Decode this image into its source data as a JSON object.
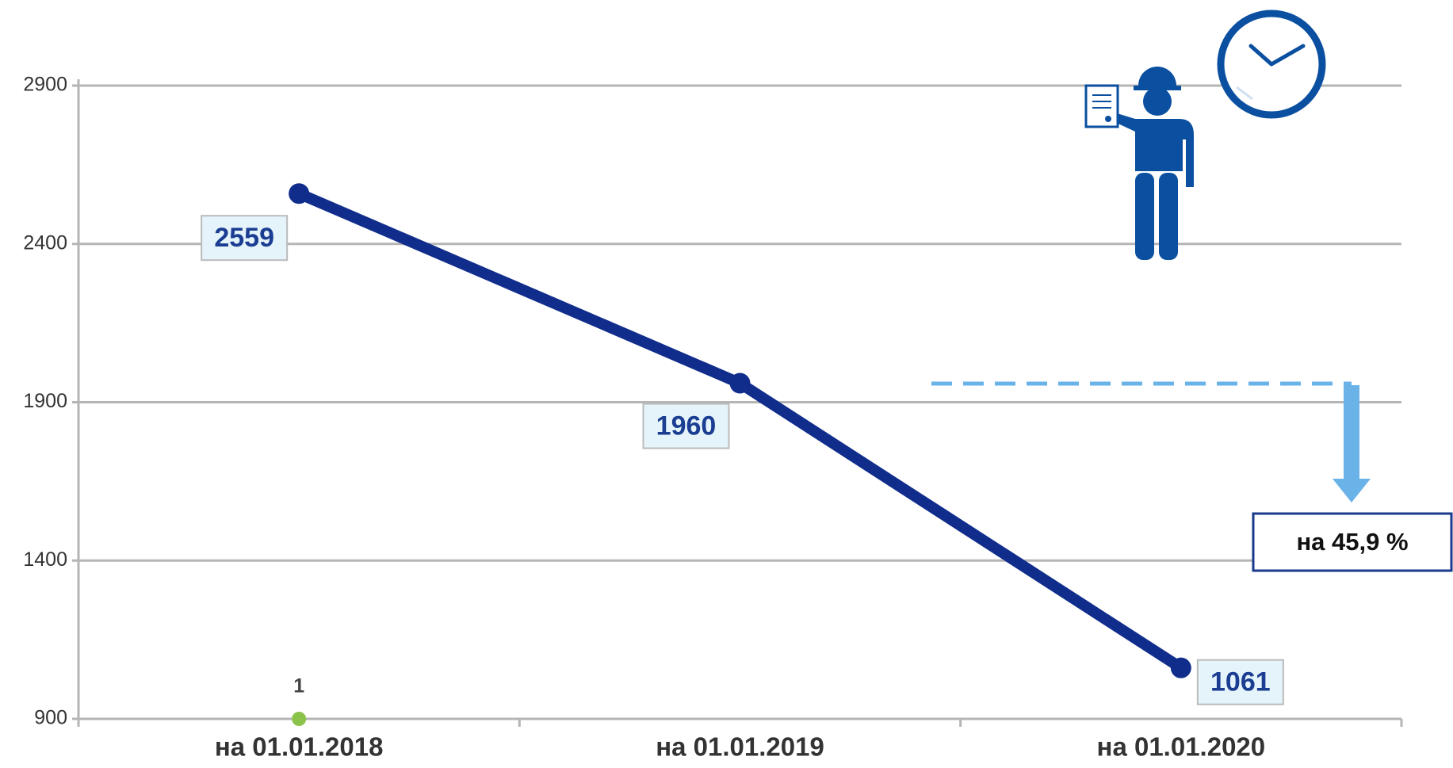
{
  "chart_data": {
    "type": "line",
    "categories": [
      "на 01.01.2018",
      "на 01.01.2019",
      "на 01.01.2020"
    ],
    "values": [
      2559,
      1960,
      1061
    ],
    "color": "#112d8c",
    "ylim": [
      900,
      2900
    ],
    "yticks": [
      900,
      1400,
      1900,
      2400,
      2900
    ],
    "grid": true,
    "annotations": [
      "1",
      "на 45,9 %"
    ]
  }
}
